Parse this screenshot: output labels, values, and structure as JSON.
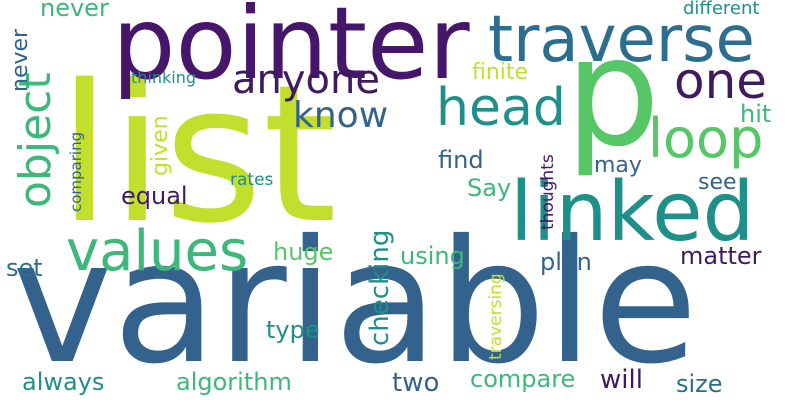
{
  "colors": {
    "dark_purple": "#46166b",
    "deep_purple": "#3f1b5e",
    "blue": "#33638d",
    "teal_blue": "#2d6e8e",
    "teal": "#1f8f8a",
    "green": "#3db77a",
    "light_green": "#56c667",
    "lime": "#c3df2e",
    "yellow_green": "#bfe133"
  },
  "words": {
    "list": "list",
    "variable": "variable",
    "pointer": "pointer",
    "p": "p",
    "traverse": "traverse",
    "linked": "linked",
    "values": "values",
    "head": "head",
    "loop": "loop",
    "one": "one",
    "object": "object",
    "anyone": "anyone",
    "know": "know",
    "never": "never",
    "different": "different",
    "thinking": "thinking",
    "finite": "finite",
    "given": "given",
    "equal": "equal",
    "find": "find",
    "may": "may",
    "hit": "hit",
    "see": "see",
    "Say": "Say",
    "comparing": "comparing",
    "rates": "rates",
    "thoughts": "thoughts",
    "checking": "checking",
    "huge": "huge",
    "using": "using",
    "plan": "plan",
    "matter": "matter",
    "set": "set",
    "type": "type",
    "traversing": "traversing",
    "always": "always",
    "algorithm": "algorithm",
    "two": "two",
    "compare": "compare",
    "will": "will",
    "size": "size"
  }
}
